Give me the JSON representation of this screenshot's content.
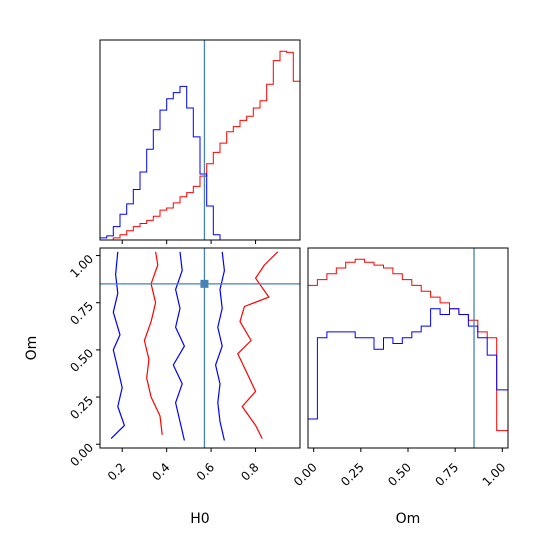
{
  "chart_data": {
    "type": "corner",
    "parameters": [
      "H0",
      "Om"
    ],
    "truths": {
      "H0": 0.57,
      "Om": 0.85
    },
    "colors": {
      "series_a": "#ff0000",
      "series_b": "#0000ff",
      "truth": "#4682b4"
    },
    "panels": [
      {
        "name": "hist-H0",
        "type": "step-histogram",
        "xlim": [
          0.1,
          1.0
        ],
        "xticks": [
          0.2,
          0.4,
          0.6,
          0.8
        ],
        "xlabel": "",
        "bin_edges": [
          0.1,
          0.13,
          0.16,
          0.19,
          0.22,
          0.25,
          0.28,
          0.31,
          0.34,
          0.37,
          0.4,
          0.43,
          0.46,
          0.49,
          0.52,
          0.55,
          0.58,
          0.61,
          0.64,
          0.67,
          0.7,
          0.73,
          0.76,
          0.79,
          0.82,
          0.85,
          0.88,
          0.91,
          0.94,
          0.97,
          1.0
        ],
        "series": [
          {
            "color": "#ff0000",
            "values": [
              0,
              0,
              0.2,
              0.5,
              0.9,
              1.3,
              1.6,
              1.9,
              2.3,
              2.9,
              3.1,
              3.6,
              4.2,
              4.6,
              5.2,
              6.2,
              7.4,
              8.5,
              9.4,
              10.5,
              11.0,
              11.6,
              12.0,
              12.8,
              13.5,
              15.1,
              17.4,
              18.3,
              18.2,
              15.4
            ]
          },
          {
            "color": "#0000ff",
            "values": [
              0.2,
              0.4,
              1.3,
              2.5,
              3.5,
              4.9,
              6.6,
              8.8,
              10.7,
              12.6,
              13.7,
              14.3,
              14.9,
              12.8,
              10.0,
              6.4,
              3.3,
              0.5,
              0,
              0,
              0,
              0,
              0,
              0,
              0,
              0,
              0,
              0,
              0,
              0
            ]
          }
        ]
      },
      {
        "name": "contour-H0-Om",
        "type": "contour",
        "xlim": [
          0.1,
          1.0
        ],
        "ylim": [
          -0.02,
          1.04
        ],
        "xticks": [
          0.2,
          0.4,
          0.6,
          0.8
        ],
        "yticks": [
          0.0,
          0.25,
          0.5,
          0.75,
          1.0
        ],
        "xlabel": "H0",
        "ylabel": "Om",
        "series": [
          {
            "color": "#ff0000",
            "lines": [
              [
                [
                  0.38,
                  0.05
                ],
                [
                  0.37,
                  0.15
                ],
                [
                  0.33,
                  0.25
                ],
                [
                  0.31,
                  0.35
                ],
                [
                  0.32,
                  0.45
                ],
                [
                  0.3,
                  0.55
                ],
                [
                  0.33,
                  0.65
                ],
                [
                  0.35,
                  0.75
                ],
                [
                  0.33,
                  0.85
                ],
                [
                  0.36,
                  0.95
                ],
                [
                  0.35,
                  1.02
                ]
              ],
              [
                [
                  0.83,
                  0.03
                ],
                [
                  0.8,
                  0.1
                ],
                [
                  0.74,
                  0.2
                ],
                [
                  0.8,
                  0.28
                ],
                [
                  0.76,
                  0.38
                ],
                [
                  0.72,
                  0.48
                ],
                [
                  0.78,
                  0.55
                ],
                [
                  0.73,
                  0.65
                ],
                [
                  0.75,
                  0.73
                ],
                [
                  0.86,
                  0.78
                ],
                [
                  0.8,
                  0.88
                ],
                [
                  0.84,
                  0.95
                ],
                [
                  0.9,
                  1.02
                ]
              ]
            ]
          },
          {
            "color": "#0000ff",
            "lines": [
              [
                [
                  0.15,
                  0.03
                ],
                [
                  0.21,
                  0.1
                ],
                [
                  0.18,
                  0.2
                ],
                [
                  0.2,
                  0.3
                ],
                [
                  0.18,
                  0.4
                ],
                [
                  0.16,
                  0.5
                ],
                [
                  0.19,
                  0.58
                ],
                [
                  0.16,
                  0.7
                ],
                [
                  0.18,
                  0.8
                ],
                [
                  0.17,
                  0.9
                ],
                [
                  0.18,
                  1.02
                ]
              ],
              [
                [
                  0.48,
                  0.02
                ],
                [
                  0.46,
                  0.12
                ],
                [
                  0.44,
                  0.22
                ],
                [
                  0.47,
                  0.32
                ],
                [
                  0.43,
                  0.42
                ],
                [
                  0.48,
                  0.52
                ],
                [
                  0.44,
                  0.62
                ],
                [
                  0.46,
                  0.72
                ],
                [
                  0.44,
                  0.82
                ],
                [
                  0.47,
                  0.92
                ],
                [
                  0.46,
                  1.02
                ]
              ],
              [
                [
                  0.66,
                  0.02
                ],
                [
                  0.64,
                  0.12
                ],
                [
                  0.63,
                  0.22
                ],
                [
                  0.64,
                  0.32
                ],
                [
                  0.62,
                  0.42
                ],
                [
                  0.65,
                  0.52
                ],
                [
                  0.63,
                  0.62
                ],
                [
                  0.65,
                  0.72
                ],
                [
                  0.64,
                  0.82
                ],
                [
                  0.66,
                  0.92
                ],
                [
                  0.65,
                  1.02
                ]
              ]
            ]
          }
        ]
      },
      {
        "name": "hist-Om",
        "type": "step-histogram",
        "xlim": [
          -0.03,
          1.03
        ],
        "xticks": [
          0.0,
          0.25,
          0.5,
          0.75,
          1.0
        ],
        "xlabel": "Om",
        "bin_edges": [
          -0.03,
          0.02,
          0.07,
          0.12,
          0.17,
          0.22,
          0.27,
          0.32,
          0.37,
          0.42,
          0.47,
          0.52,
          0.57,
          0.62,
          0.67,
          0.72,
          0.77,
          0.82,
          0.87,
          0.92,
          0.97,
          1.03
        ],
        "series": [
          {
            "color": "#ff0000",
            "values": [
              2.8,
              2.9,
              3.0,
              3.1,
              3.2,
              3.25,
              3.2,
              3.15,
              3.1,
              3.0,
              2.9,
              2.8,
              2.7,
              2.6,
              2.5,
              2.4,
              2.3,
              2.2,
              2.0,
              1.9,
              0.3
            ]
          },
          {
            "color": "#0000ff",
            "values": [
              0.5,
              1.9,
              2.0,
              2.0,
              2.0,
              1.9,
              1.9,
              1.7,
              1.9,
              1.8,
              1.9,
              2.0,
              2.1,
              2.4,
              2.3,
              2.4,
              2.3,
              2.1,
              1.9,
              1.6,
              1.0
            ]
          }
        ]
      }
    ]
  }
}
